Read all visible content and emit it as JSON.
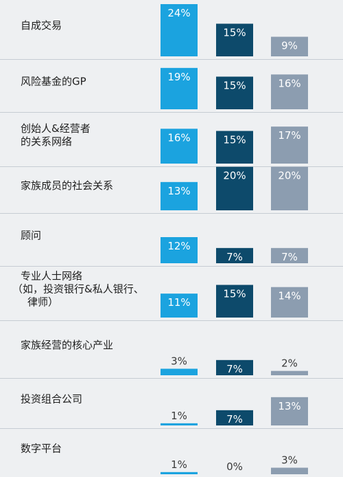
{
  "chart_data": {
    "type": "bar",
    "orientation": "grouped-columns-per-row",
    "categories": [
      [
        "自成交易"
      ],
      [
        "风险基金的GP"
      ],
      [
        "创始人&经营者",
        "的关系网络"
      ],
      [
        "家族成员的社会关系"
      ],
      [
        "顾问"
      ],
      [
        "专业人士网络",
        "（如，投资银行&私人银行、",
        "律师）"
      ],
      [
        "家族经营的核心产业"
      ],
      [
        "投资组合公司"
      ],
      [
        "数字平台"
      ]
    ],
    "series": [
      {
        "values": [
          24,
          19,
          16,
          13,
          12,
          11,
          3,
          1,
          1
        ]
      },
      {
        "values": [
          15,
          15,
          15,
          20,
          7,
          15,
          7,
          7,
          0
        ]
      },
      {
        "values": [
          9,
          16,
          17,
          20,
          7,
          14,
          2,
          13,
          3
        ]
      }
    ],
    "value_labels": [
      [
        "24%",
        "19%",
        "16%",
        "13%",
        "12%",
        "11%",
        "3%",
        "1%",
        "1%"
      ],
      [
        "15%",
        "15%",
        "15%",
        "20%",
        "7%",
        "15%",
        "7%",
        "7%",
        "0%"
      ],
      [
        "9%",
        "16%",
        "17%",
        "20%",
        "7%",
        "14%",
        "2%",
        "13%",
        "3%"
      ]
    ],
    "colors": [
      "#1ba3df",
      "#0d4a6b",
      "#8c9db0"
    ],
    "label_colors": [
      "#ffffff",
      "#ffffff",
      "#ffffff"
    ],
    "small_label_color": "#3a3a3a",
    "ylim": [
      0,
      24
    ],
    "grid": false,
    "legend": "none",
    "row_dividers": true
  }
}
